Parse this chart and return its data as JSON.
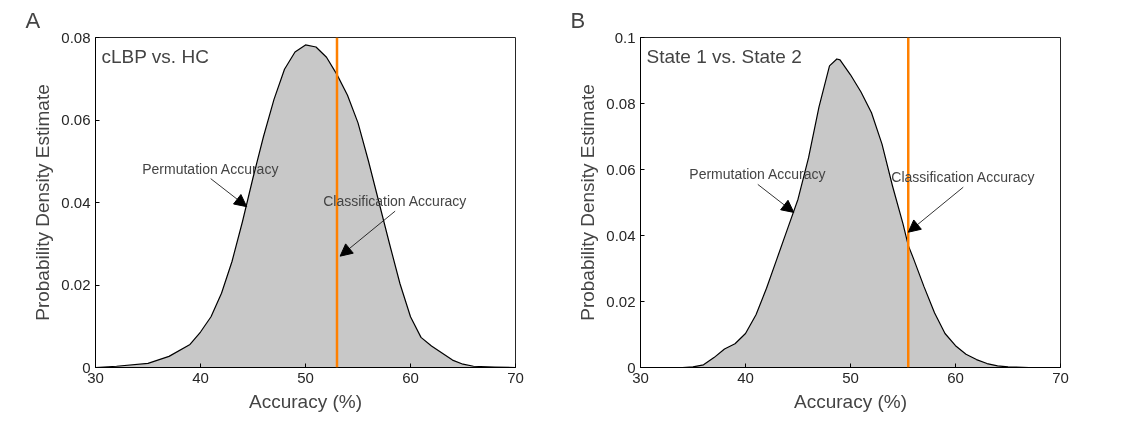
{
  "chart_data": [
    {
      "type": "area",
      "title": "A",
      "subtitle": "cLBP vs. HC",
      "xlabel": "Accuracy (%)",
      "ylabel": "Probability Density Estimate",
      "x": [
        30,
        32,
        35,
        37,
        39,
        40,
        41,
        42,
        43,
        44,
        45,
        46,
        47,
        48,
        49,
        50,
        51,
        52,
        53,
        54,
        55,
        56,
        57,
        58,
        59,
        60,
        61,
        62,
        63,
        64,
        65,
        66,
        68,
        70
      ],
      "series": [
        {
          "color": "#c8c8c8",
          "values": [
            0,
            0.0003,
            0.001,
            0.0027,
            0.0056,
            0.0086,
            0.0123,
            0.018,
            0.0257,
            0.0354,
            0.046,
            0.056,
            0.065,
            0.0723,
            0.0765,
            0.0782,
            0.0777,
            0.0752,
            0.071,
            0.066,
            0.0593,
            0.05,
            0.04,
            0.03,
            0.0203,
            0.0123,
            0.0073,
            0.0052,
            0.0035,
            0.0018,
            0.0008,
            0.0003,
            0.0001,
            0
          ]
        }
      ],
      "xlim": [
        30,
        70
      ],
      "xticks": [
        30,
        40,
        50,
        60,
        70
      ],
      "ylim": [
        0,
        0.08
      ],
      "yticks": [
        0,
        0.02,
        0.04,
        0.06,
        0.08
      ],
      "ref_lines": [
        {
          "axis": "x",
          "value": 53,
          "color": "#ff8000"
        }
      ],
      "annotations": [
        {
          "text": "Permutation Accuracy",
          "x": 44.4,
          "y": 0.039
        },
        {
          "text": "Classification Accuracy",
          "x": 53.3,
          "y": 0.027
        }
      ],
      "grid": false
    },
    {
      "type": "area",
      "title": "B",
      "subtitle": "State 1 vs. State 2",
      "xlabel": "Accuracy (%)",
      "ylabel": "Probability Density Estimate",
      "x": [
        34,
        35,
        36,
        37,
        38,
        39,
        40,
        41,
        42,
        43,
        44,
        45,
        46,
        47,
        48,
        48.7,
        49,
        50,
        51,
        52,
        53,
        54,
        55,
        55.5,
        56,
        57,
        58,
        59,
        60,
        61,
        62,
        63,
        64,
        65,
        67
      ],
      "series": [
        {
          "color": "#c8c8c8",
          "values": [
            0,
            0.0002,
            0.0008,
            0.003,
            0.0056,
            0.0072,
            0.0103,
            0.016,
            0.024,
            0.033,
            0.042,
            0.051,
            0.0635,
            0.079,
            0.0914,
            0.0935,
            0.0932,
            0.0887,
            0.0835,
            0.0772,
            0.0677,
            0.055,
            0.0435,
            0.037,
            0.033,
            0.0245,
            0.0166,
            0.0103,
            0.0066,
            0.004,
            0.0024,
            0.0012,
            0.0005,
            0.0002,
            0
          ]
        }
      ],
      "xlim": [
        30,
        70
      ],
      "xticks": [
        30,
        40,
        50,
        60,
        70
      ],
      "ylim": [
        0,
        0.1
      ],
      "yticks": [
        0,
        0.02,
        0.04,
        0.06,
        0.08,
        {
          "value": 0.1,
          "label": "0.1"
        }
      ],
      "ref_lines": [
        {
          "axis": "x",
          "value": 55.5,
          "color": "#ff8000"
        }
      ],
      "annotations": [
        {
          "text": "Permutation Accuracy",
          "x": 44.6,
          "y": 0.047
        },
        {
          "text": "Classification Accuracy",
          "x": 55.5,
          "y": 0.041
        }
      ],
      "grid": false
    }
  ]
}
